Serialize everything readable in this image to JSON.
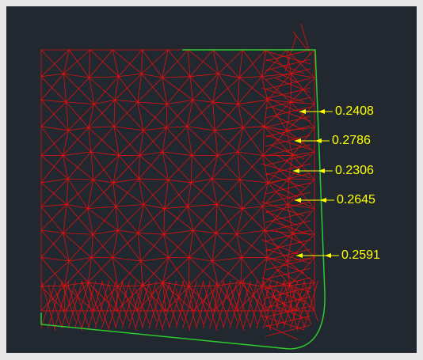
{
  "annotations": [
    {
      "label": "0.2408"
    },
    {
      "label": "0.2786"
    },
    {
      "label": "0.2306"
    },
    {
      "label": "0.2645"
    },
    {
      "label": "0.2591"
    }
  ]
}
